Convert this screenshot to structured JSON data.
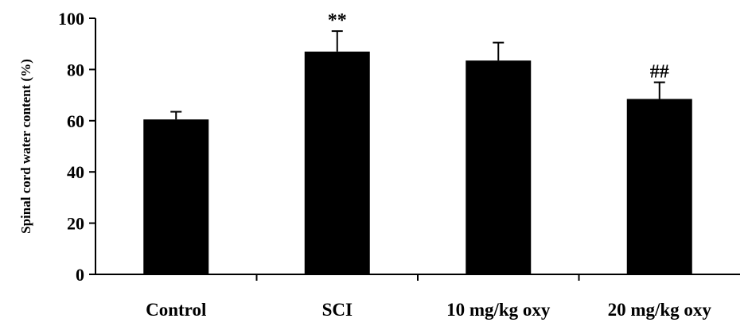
{
  "chart_data": {
    "type": "bar",
    "categories": [
      "Control",
      "SCI",
      "10 mg/kg oxy",
      "20 mg/kg oxy"
    ],
    "values": [
      60.5,
      87,
      83.5,
      68.5
    ],
    "errors": [
      3,
      8,
      7,
      6.5
    ],
    "annotations": [
      "",
      "**",
      "",
      "##"
    ],
    "ylabel": "Spinal cord water content (%)",
    "xlabel": "",
    "ylim": [
      0,
      100
    ],
    "yticks": [
      0,
      20,
      40,
      60,
      80,
      100
    ],
    "bar_color": "#000000",
    "grid": false
  }
}
